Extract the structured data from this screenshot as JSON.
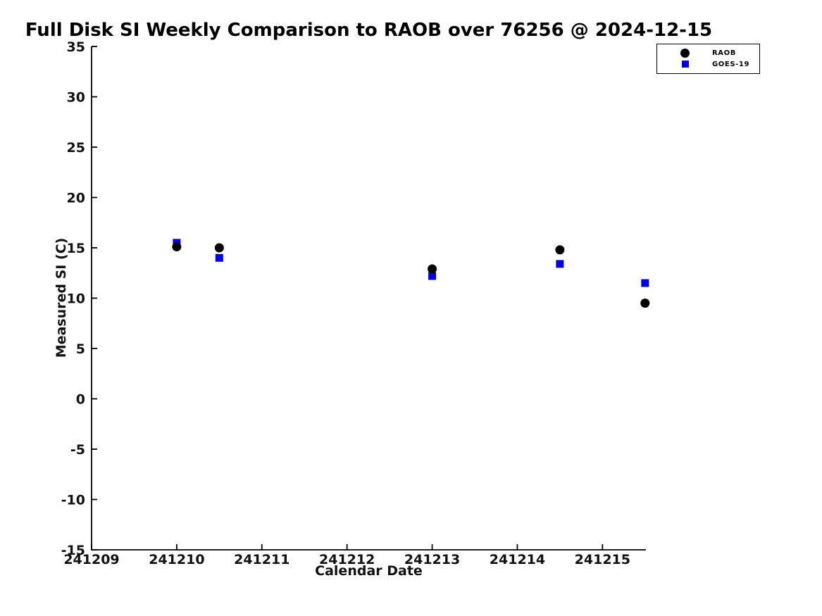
{
  "chart_data": {
    "type": "scatter",
    "title": "Full Disk SI Weekly Comparison to RAOB over 76256 @ 2024-12-15",
    "xlabel": "Calendar Date",
    "ylabel": "Measured SI (C)",
    "xlim": [
      241209,
      241215.51
    ],
    "ylim": [
      -15,
      35
    ],
    "x_ticks": [
      241209,
      241210,
      241211,
      241212,
      241213,
      241214,
      241215
    ],
    "y_ticks": [
      35,
      30,
      25,
      20,
      15,
      10,
      5,
      0,
      -5,
      -10,
      -15
    ],
    "grid": false,
    "legend_position": "upper right",
    "background_color": "#FFFFFF",
    "axis_color": "#000000",
    "series": [
      {
        "name": "RAOB",
        "marker": "circle",
        "color": "#000000",
        "points": [
          [
            241210.0,
            15.1
          ],
          [
            241210.5,
            15.0
          ],
          [
            241213.0,
            12.9
          ],
          [
            241214.5,
            14.8
          ],
          [
            241215.5,
            9.5
          ]
        ]
      },
      {
        "name": "GOES-19",
        "marker": "square",
        "color": "#0000EE",
        "points": [
          [
            241210.0,
            15.5
          ],
          [
            241210.5,
            14.0
          ],
          [
            241213.0,
            12.2
          ],
          [
            241214.5,
            13.4
          ],
          [
            241215.5,
            11.5
          ]
        ]
      }
    ]
  }
}
